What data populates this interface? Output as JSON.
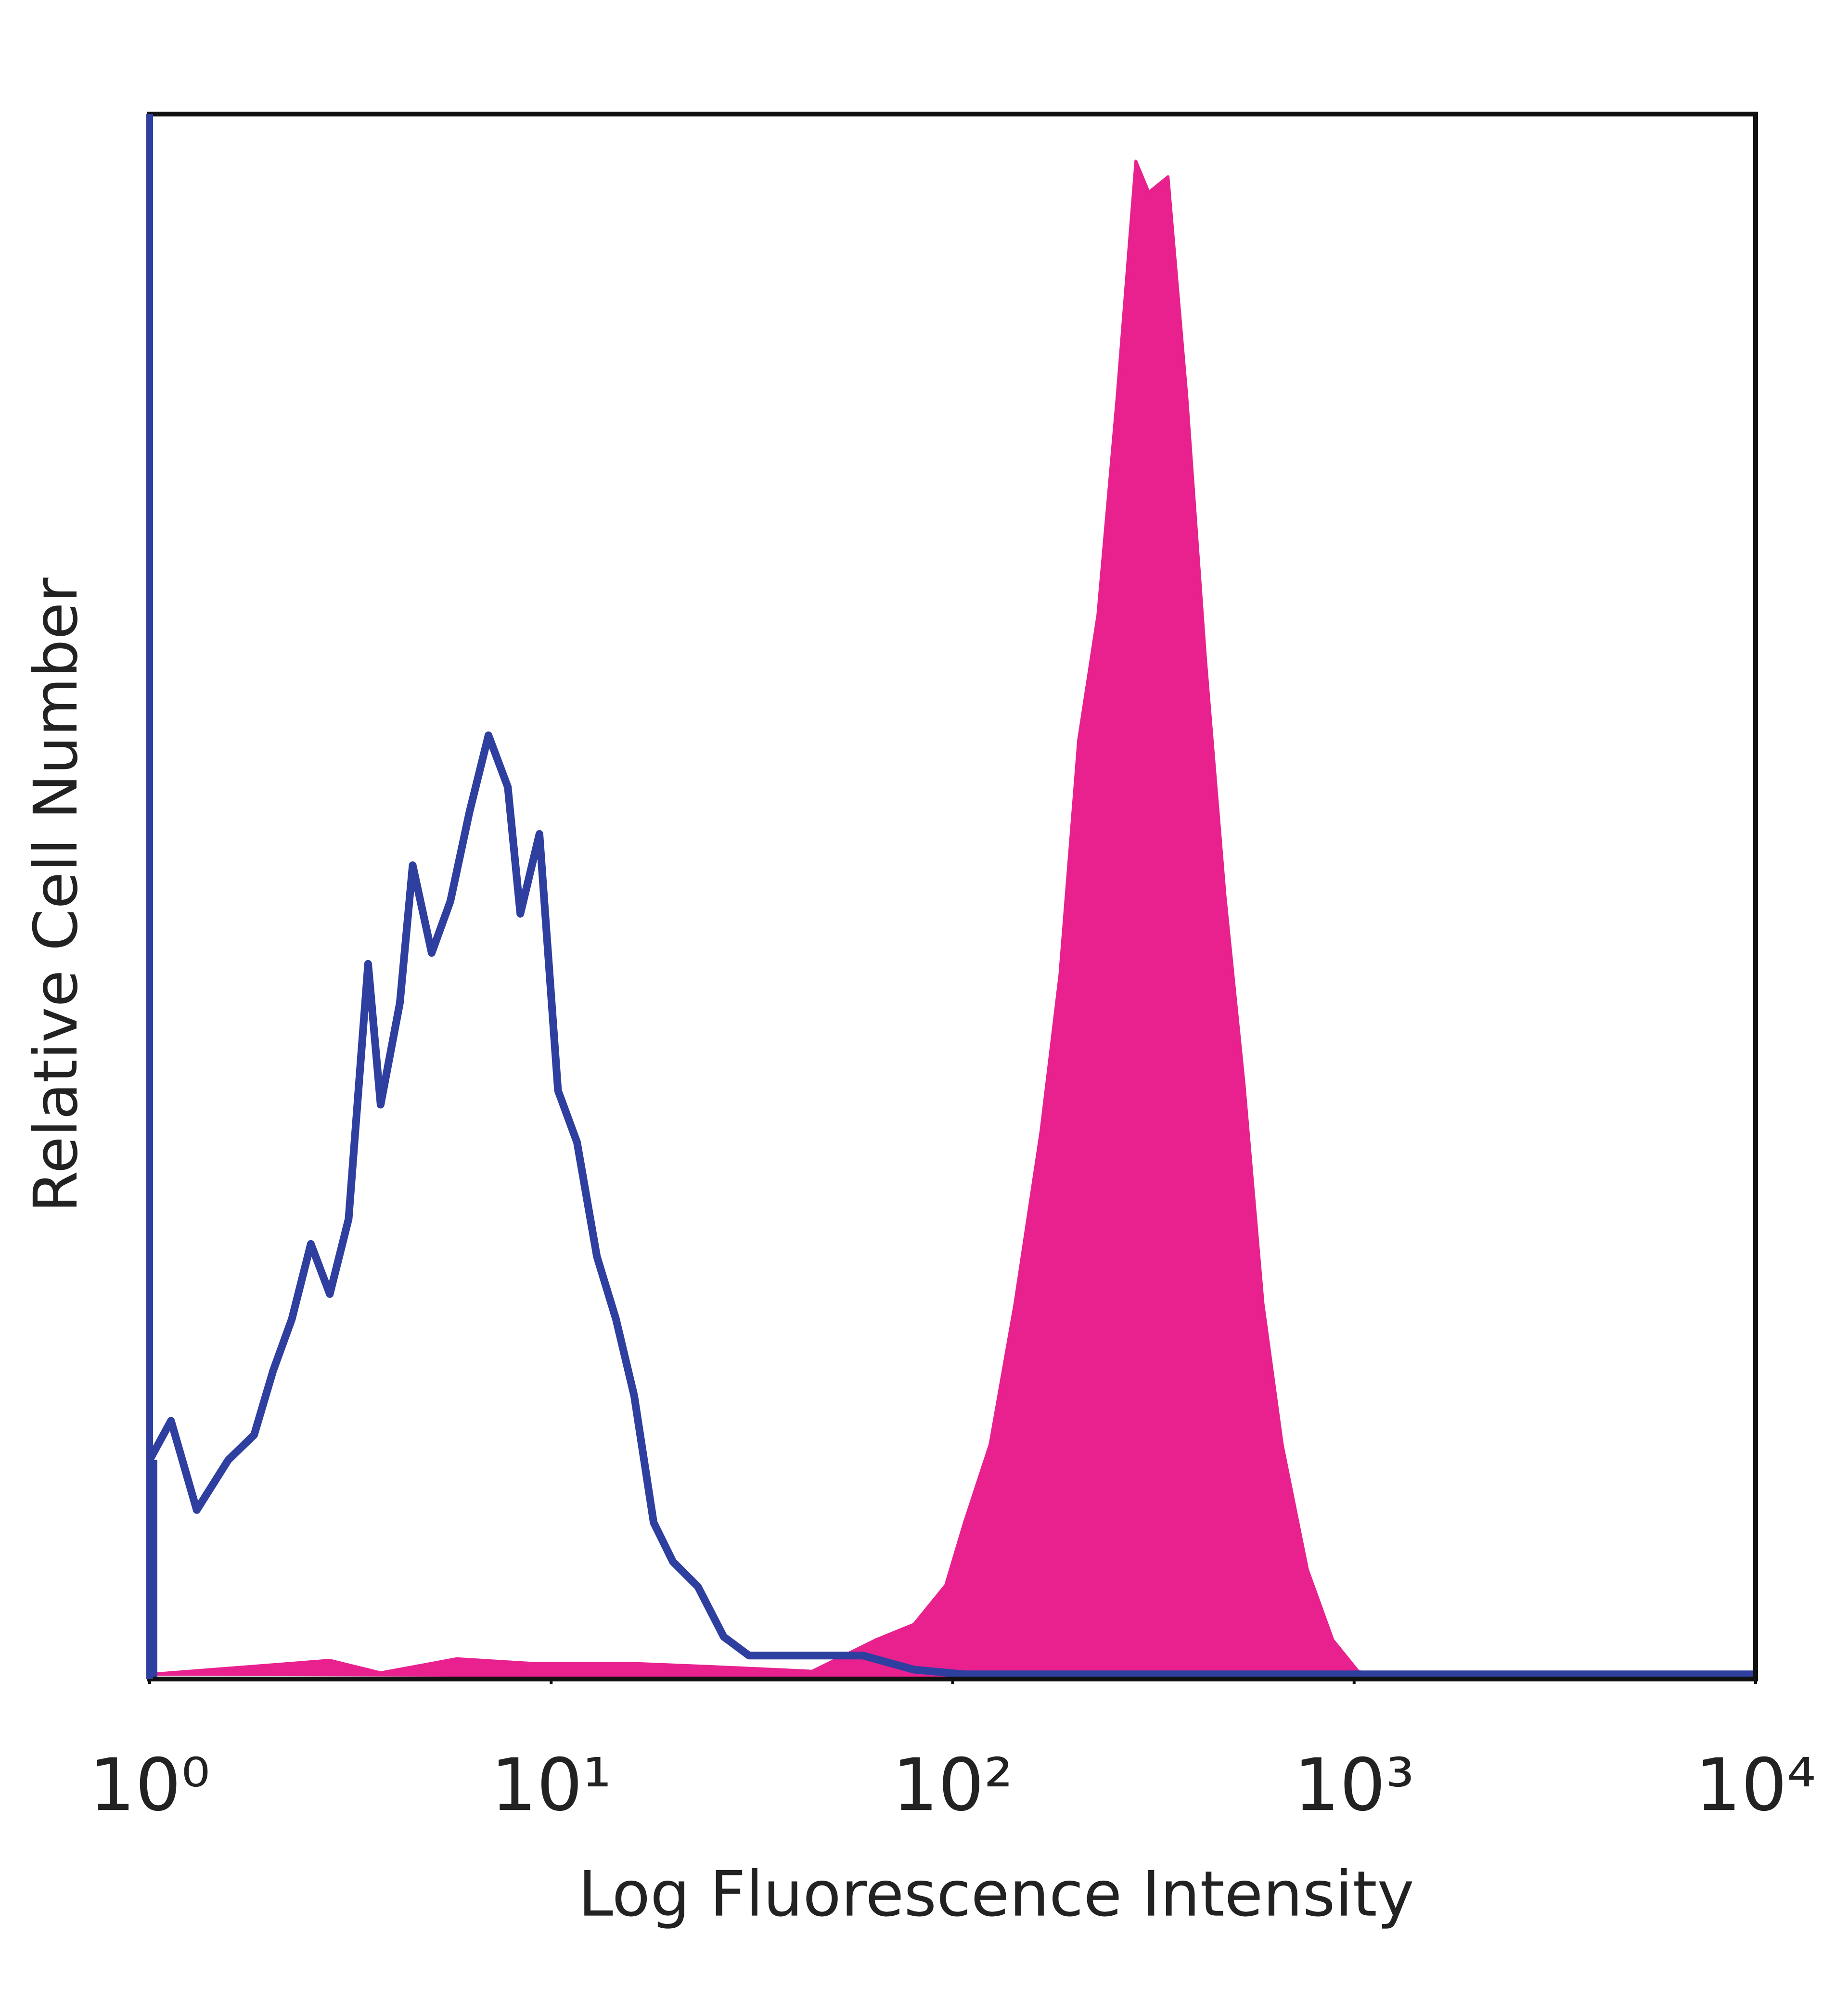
{
  "chart_data": {
    "type": "histogram-overlay",
    "x_label": "Log Fluorescence Intensity",
    "y_label": "Relative Cell Number",
    "xscale": "log",
    "xlim": [
      1,
      10000
    ],
    "xticks": [
      {
        "value": 1,
        "label": "10⁰"
      },
      {
        "value": 10,
        "label": "10¹"
      },
      {
        "value": 100,
        "label": "10²"
      },
      {
        "value": 1000,
        "label": "10³"
      },
      {
        "value": 10000,
        "label": "10⁴"
      }
    ],
    "ylim": [
      0,
      100
    ],
    "series": [
      {
        "color": "#e8218e",
        "style": "area",
        "x": [
          1,
          2.81,
          3.76,
          5.82,
          9.02,
          16.1,
          25.0,
          44.7,
          64.3,
          80.1,
          96.1,
          107,
          124,
          143,
          166,
          185,
          206,
          230,
          257,
          286,
          308,
          344,
          383,
          427,
          477,
          532,
          593,
          662,
          765,
          885,
          1023,
          1186,
          10000
        ],
        "values": [
          0.3,
          1.2,
          0.4,
          1.3,
          1.0,
          1.0,
          0.8,
          0.5,
          2.5,
          3.5,
          6,
          10,
          15,
          24,
          35,
          45,
          60,
          68,
          82,
          97,
          95,
          96,
          82,
          65,
          50,
          38,
          24,
          15,
          7,
          2.5,
          0.5,
          0,
          0
        ]
      },
      {
        "color": "#2e3f9f",
        "style": "line",
        "x": [
          1,
          1.13,
          1.31,
          1.57,
          1.82,
          2.03,
          2.26,
          2.52,
          2.81,
          3.13,
          3.5,
          3.76,
          4.2,
          4.52,
          5.04,
          5.61,
          6.26,
          6.98,
          7.8,
          8.38,
          9.35,
          10.4,
          11.6,
          13.0,
          14.5,
          16.1,
          18.0,
          20.1,
          23.2,
          26.9,
          31.1,
          38.6,
          59.8,
          80.1,
          107,
          297,
          1274,
          10000
        ],
        "values": [
          14,
          16.5,
          10.8,
          14,
          15.6,
          19.7,
          23,
          27.8,
          24.6,
          29.4,
          45.7,
          36.7,
          43.2,
          52,
          46.4,
          49.7,
          55.4,
          60.3,
          57,
          48.9,
          54,
          37.6,
          34.3,
          27,
          23,
          18.1,
          10,
          7.5,
          5.9,
          2.7,
          1.5,
          1.5,
          1.5,
          0.6,
          0.3,
          0.3,
          0.3,
          0.3
        ]
      }
    ]
  }
}
